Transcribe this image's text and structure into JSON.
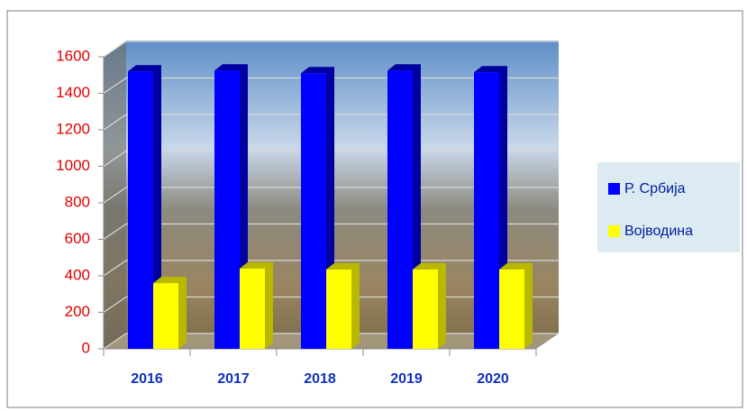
{
  "chart_data": {
    "type": "bar3d",
    "categories": [
      "2016",
      "2017",
      "2018",
      "2019",
      "2020"
    ],
    "series": [
      {
        "name": "Р. Србија",
        "color": "#0000ff",
        "values": [
          1520,
          1525,
          1510,
          1525,
          1515
        ]
      },
      {
        "name": "Војводина",
        "color": "#ffff00",
        "values": [
          360,
          440,
          435,
          435,
          435
        ]
      }
    ],
    "ylim": [
      0,
      1600
    ],
    "yticks": [
      0,
      200,
      400,
      600,
      800,
      1000,
      1200,
      1400,
      1600
    ],
    "grid": true,
    "legend": "right"
  }
}
